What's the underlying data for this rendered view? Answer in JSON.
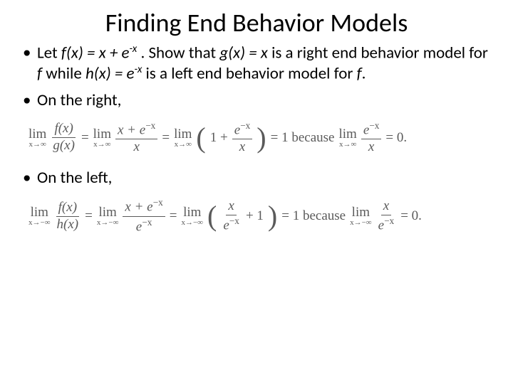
{
  "title": "Finding End Behavior Models",
  "bullets": {
    "b1_part1": "Let ",
    "b1_fx": "f(x) = x + e",
    "b1_exp1": "-x",
    "b1_part2": " .  Show that ",
    "b1_gx": "g(x) = x",
    "b1_part3": " is a right end behavior model for ",
    "b1_f": "f",
    "b1_part4": " while ",
    "b1_hx": "h(x) = e",
    "b1_exp2": "-x",
    "b1_part5": " is a left end behavior model for ",
    "b1_f2": "f",
    "b1_part6": ".",
    "b2": "On the right,",
    "b3": "On the left,"
  },
  "eq1": {
    "lim_top": "lim",
    "lim_bot_right": "x→∞",
    "lim_bot_left": "x→−∞",
    "fx": "f(x)",
    "gx": "g(x)",
    "hx": "h(x)",
    "eq": "=",
    "num1": "x + e",
    "exp": "−x",
    "den_x": "x",
    "den_e": "e",
    "lp": "(",
    "rp": ")",
    "one_plus": "1 +",
    "plus_one": "+ 1",
    "eq1": "= 1 because",
    "eq0": "= 0.",
    "e": "e",
    "x": "x"
  },
  "style": {
    "background_color": "#ffffff",
    "text_color": "#000000",
    "eq_color": "#5a5a5a",
    "title_fontsize": 36,
    "body_fontsize": 23,
    "eq_fontsize": 19
  }
}
